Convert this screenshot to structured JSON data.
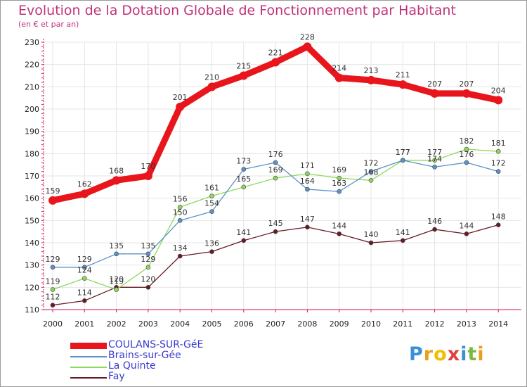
{
  "title": "Evolution de la Dotation Globale de Fonctionnement par Habitant",
  "subtitle": "(en € et par an)",
  "logo": "Proxiti",
  "chart_data": {
    "type": "line",
    "x": [
      "2000",
      "2001",
      "2002",
      "2003",
      "2004",
      "2005",
      "2006",
      "2007",
      "2008",
      "2009",
      "2010",
      "2011",
      "2012",
      "2013",
      "2014"
    ],
    "ylim": [
      110,
      230
    ],
    "yticks": [
      110,
      120,
      130,
      140,
      150,
      160,
      170,
      180,
      190,
      200,
      210,
      220,
      230
    ],
    "grid": true,
    "legend_position": "bottom-left",
    "series": [
      {
        "name": "COULANS-SUR-GéE",
        "color": "#e8161c",
        "values": [
          159,
          162,
          168,
          170,
          201,
          210,
          215,
          221,
          228,
          214,
          213,
          211,
          207,
          207,
          204
        ]
      },
      {
        "name": "Brains-sur-Gée",
        "color": "#5a92c8",
        "values": [
          129,
          129,
          135,
          135,
          150,
          154,
          173,
          176,
          164,
          163,
          172,
          177,
          174,
          176,
          172
        ]
      },
      {
        "name": "La Quinte",
        "color": "#8ed85a",
        "values": [
          119,
          124,
          119,
          129,
          156,
          161,
          165,
          169,
          171,
          169,
          168,
          177,
          177,
          182,
          181
        ]
      },
      {
        "name": "Fay",
        "color": "#6a1a24",
        "values": [
          112,
          114,
          120,
          120,
          134,
          136,
          141,
          145,
          147,
          144,
          140,
          141,
          146,
          144,
          148
        ]
      }
    ]
  }
}
